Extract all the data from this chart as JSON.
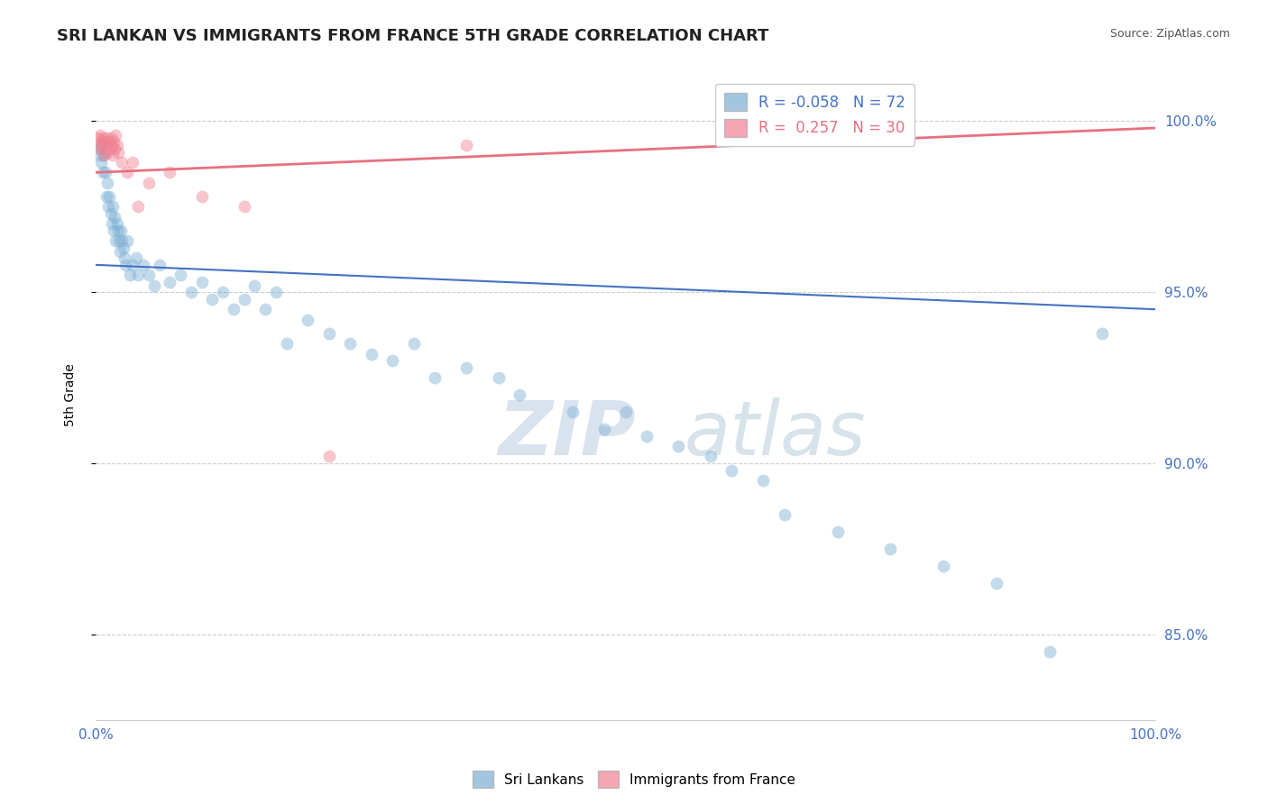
{
  "title": "SRI LANKAN VS IMMIGRANTS FROM FRANCE 5TH GRADE CORRELATION CHART",
  "source_text": "Source: ZipAtlas.com",
  "ylabel": "5th Grade",
  "watermark_zip": "ZIP",
  "watermark_atlas": "atlas",
  "xlim": [
    0.0,
    100.0
  ],
  "ylim": [
    82.5,
    101.5
  ],
  "yticks": [
    85.0,
    90.0,
    95.0,
    100.0
  ],
  "ytick_labels": [
    "85.0%",
    "90.0%",
    "95.0%",
    "100.0%"
  ],
  "grid_color": "#cccccc",
  "background_color": "#ffffff",
  "tick_color": "#4472c4",
  "blue_scatter_x": [
    0.3,
    0.4,
    0.5,
    0.6,
    0.7,
    0.8,
    0.9,
    1.0,
    1.1,
    1.2,
    1.3,
    1.4,
    1.5,
    1.6,
    1.7,
    1.8,
    1.9,
    2.0,
    2.1,
    2.2,
    2.3,
    2.4,
    2.5,
    2.6,
    2.7,
    2.8,
    3.0,
    3.2,
    3.5,
    3.8,
    4.0,
    4.5,
    5.0,
    5.5,
    6.0,
    7.0,
    8.0,
    9.0,
    10.0,
    11.0,
    12.0,
    13.0,
    14.0,
    15.0,
    16.0,
    17.0,
    18.0,
    20.0,
    22.0,
    24.0,
    26.0,
    28.0,
    30.0,
    32.0,
    35.0,
    38.0,
    40.0,
    45.0,
    48.0,
    50.0,
    52.0,
    55.0,
    58.0,
    60.0,
    63.0,
    65.0,
    70.0,
    75.0,
    80.0,
    85.0,
    90.0,
    95.0
  ],
  "blue_scatter_y": [
    99.2,
    99.0,
    98.8,
    99.3,
    98.5,
    99.0,
    98.5,
    97.8,
    98.2,
    97.5,
    97.8,
    97.3,
    97.0,
    97.5,
    96.8,
    97.2,
    96.5,
    97.0,
    96.8,
    96.5,
    96.2,
    96.8,
    96.5,
    96.3,
    96.0,
    95.8,
    96.5,
    95.5,
    95.8,
    96.0,
    95.5,
    95.8,
    95.5,
    95.2,
    95.8,
    95.3,
    95.5,
    95.0,
    95.3,
    94.8,
    95.0,
    94.5,
    94.8,
    95.2,
    94.5,
    95.0,
    93.5,
    94.2,
    93.8,
    93.5,
    93.2,
    93.0,
    93.5,
    92.5,
    92.8,
    92.5,
    92.0,
    91.5,
    91.0,
    91.5,
    90.8,
    90.5,
    90.2,
    89.8,
    89.5,
    88.5,
    88.0,
    87.5,
    87.0,
    86.5,
    84.5,
    93.8
  ],
  "pink_scatter_x": [
    0.2,
    0.3,
    0.4,
    0.5,
    0.6,
    0.7,
    0.8,
    0.9,
    1.0,
    1.1,
    1.2,
    1.3,
    1.4,
    1.5,
    1.6,
    1.7,
    1.8,
    1.9,
    2.0,
    2.1,
    2.5,
    3.0,
    3.5,
    4.0,
    5.0,
    7.0,
    10.0,
    14.0,
    22.0,
    35.0
  ],
  "pink_scatter_y": [
    99.5,
    99.3,
    99.6,
    99.2,
    99.4,
    99.5,
    99.0,
    99.3,
    99.5,
    99.1,
    99.4,
    99.2,
    99.5,
    99.3,
    99.0,
    99.4,
    99.2,
    99.6,
    99.3,
    99.1,
    98.8,
    98.5,
    98.8,
    97.5,
    98.2,
    98.5,
    97.8,
    97.5,
    90.2,
    99.3
  ],
  "blue_line_x": [
    0.0,
    100.0
  ],
  "blue_line_y": [
    95.8,
    94.5
  ],
  "pink_line_x": [
    0.0,
    100.0
  ],
  "pink_line_y": [
    98.5,
    99.8
  ],
  "blue_color": "#7bafd4",
  "pink_color": "#f08090",
  "blue_line_color": "#4472c4",
  "pink_line_color": "#e87080",
  "marker_size": 100,
  "marker_alpha": 0.45,
  "legend_blue_label": "R = -0.058   N = 72",
  "legend_pink_label": "R =  0.257   N = 30",
  "legend_blue_color": "#4472c4",
  "legend_pink_color": "#e87080"
}
